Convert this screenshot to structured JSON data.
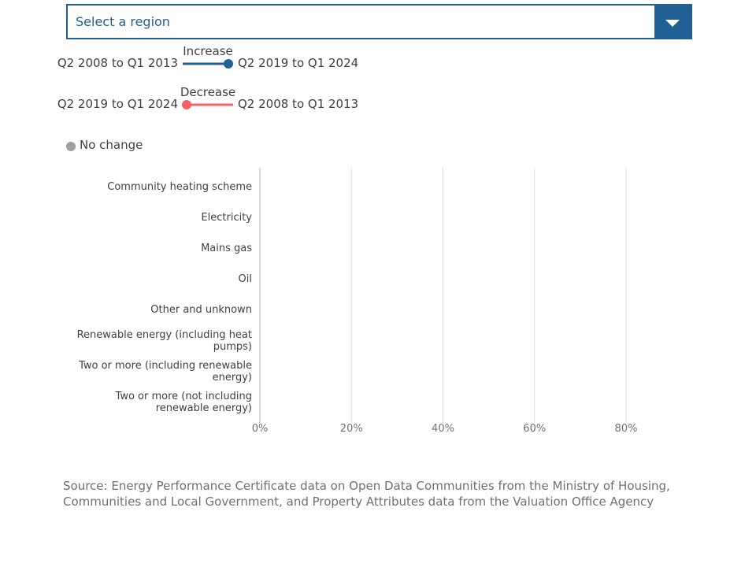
{
  "dropdown": {
    "placeholder": "Select a region"
  },
  "chart_data": {
    "type": "dumbbell",
    "legend": [
      {
        "name": "Increase",
        "from": "Q2 2008 to Q1 2013",
        "to": "Q2 2019 to Q1 2024",
        "color": "#206095"
      },
      {
        "name": "Decrease",
        "from": "Q2 2019 to Q1 2024",
        "to": "Q2 2008 to Q1 2013",
        "color": "#f66068"
      },
      {
        "name": "No change",
        "color": "#a0a0a0"
      }
    ],
    "categories": [
      "Community heating scheme",
      "Electricity",
      "Mains gas",
      "Oil",
      "Other and unknown",
      "Renewable energy (including heat pumps)",
      "Two or more (including renewable energy)",
      "Two or more (not including renewable energy)"
    ],
    "xlim": [
      0,
      80
    ],
    "xticks": [
      {
        "value": 0,
        "label": "0%"
      },
      {
        "value": 20,
        "label": "20%"
      },
      {
        "value": 40,
        "label": "40%"
      },
      {
        "value": 60,
        "label": "60%"
      },
      {
        "value": 80,
        "label": "80%"
      }
    ],
    "grid": true,
    "source": "Source: Energy Performance Certificate data on Open Data Communities from the Ministry of Housing, Communities and Local Government, and Property Attributes data from the Valuation Office Agency"
  }
}
